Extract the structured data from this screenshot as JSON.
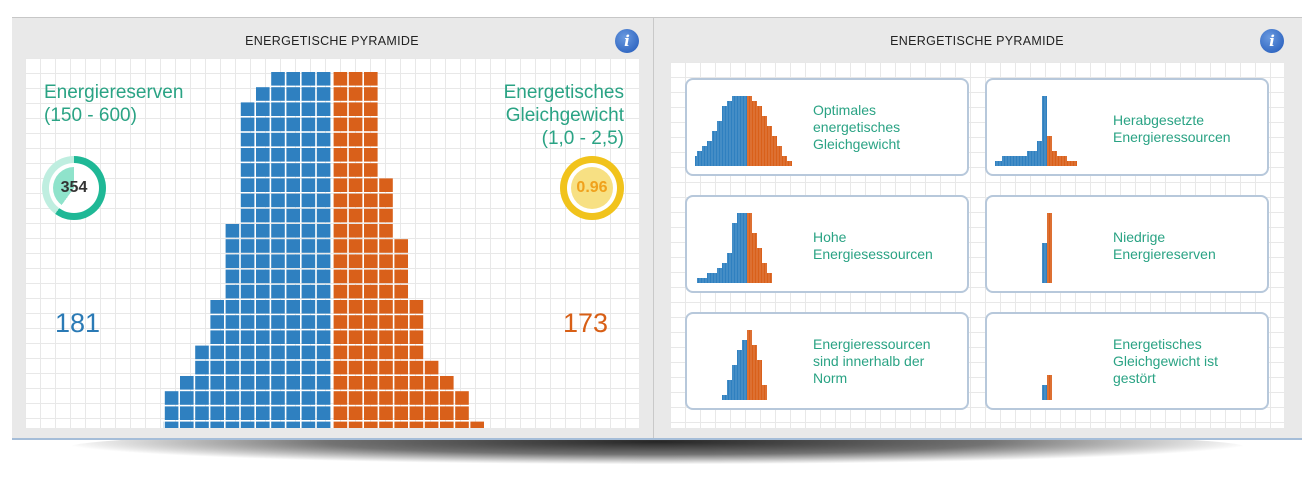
{
  "panels": [
    {
      "title": "ENERGETISCHE PYRAMIDE",
      "info_icon": "info-icon"
    },
    {
      "title": "ENERGETISCHE PYRAMIDE",
      "info_icon": "info-icon"
    }
  ],
  "left": {
    "reserves_label_1": "Energiereserven",
    "reserves_label_2": "(150 - 600)",
    "reserves_value": "354",
    "balance_label_1": "Energetisches",
    "balance_label_2": "Gleichgewicht",
    "balance_label_3": "(1,0 - 2,5)",
    "balance_value": "0.96",
    "left_count": "181",
    "right_count": "173"
  },
  "colors": {
    "blue": "#2f80c0",
    "orange": "#d9601a",
    "teal": "#2aa384",
    "gold": "#f1c31c"
  },
  "chart_data": {
    "type": "bar",
    "orientation": "pyramid",
    "row_labels": [],
    "left_series": {
      "name": "",
      "values": [
        4,
        5,
        6,
        6,
        6,
        6,
        6,
        6,
        6,
        6,
        7,
        7,
        7,
        7,
        7,
        8,
        8,
        8,
        9,
        9,
        10,
        11,
        11,
        12,
        12,
        13,
        13,
        14
      ]
    },
    "right_series": {
      "name": "",
      "values": [
        3,
        3,
        3,
        3,
        3,
        3,
        3,
        4,
        4,
        4,
        4,
        5,
        5,
        5,
        5,
        6,
        6,
        6,
        6,
        7,
        8,
        9,
        9,
        10,
        11,
        11,
        12,
        13
      ]
    }
  },
  "cards": [
    {
      "label": "Optimales energetisches Gleichgewicht",
      "lines": [
        "Optimales",
        "energetisches",
        "Gleichgewicht"
      ],
      "left": [
        3,
        4,
        5,
        5,
        5,
        6,
        6,
        7,
        7,
        8,
        9,
        10,
        11,
        13
      ],
      "right": [
        1,
        2,
        3,
        3,
        4,
        4,
        5,
        5,
        6,
        6,
        7,
        7,
        8,
        9
      ]
    },
    {
      "label": "Herabgesetzte Energieressourcen",
      "lines": [
        "Herabgesetzte",
        "Energieressourcen"
      ],
      "left": [
        1,
        1,
        1,
        1,
        1,
        1,
        1,
        1,
        1,
        2,
        2,
        4,
        9,
        13
      ],
      "right": [
        0,
        0,
        0,
        0,
        0,
        0,
        0,
        0,
        1,
        1,
        1,
        2,
        4,
        6
      ]
    },
    {
      "label": "Hohe Energiesessourcen",
      "lines": [
        "Hohe",
        "Energiesessourcen"
      ],
      "left": [
        2,
        2,
        3,
        3,
        3,
        3,
        3,
        3,
        4,
        4,
        5,
        6,
        8,
        10
      ],
      "right": [
        1,
        1,
        1,
        1,
        2,
        2,
        2,
        3,
        3,
        3,
        4,
        4,
        5,
        5
      ]
    },
    {
      "label": "Niedrige Energiereserven",
      "lines": [
        "Niedrige",
        "Energiereserven"
      ],
      "left": [
        0,
        0,
        0,
        0,
        0,
        0,
        1,
        1,
        1,
        1,
        1,
        1,
        1,
        1
      ],
      "right": [
        1,
        1,
        1,
        1,
        1,
        1,
        1,
        1,
        1,
        1,
        1,
        1,
        1,
        1
      ]
    },
    {
      "label": "Energieressourcen sind innerhalb der Norm",
      "lines": [
        "Energieressourcen",
        "sind innerhalb der",
        "Norm"
      ],
      "left": [
        0,
        0,
        1,
        1,
        2,
        2,
        2,
        3,
        3,
        3,
        4,
        4,
        4,
        5
      ],
      "right": [
        1,
        1,
        1,
        2,
        2,
        2,
        3,
        3,
        3,
        3,
        3,
        4,
        4,
        4
      ]
    },
    {
      "label": "Energetisches Gleichgewicht ist gestört",
      "lines": [
        "Energetisches",
        "Gleichgewicht ist",
        "gestört"
      ],
      "left": [
        0,
        0,
        0,
        0,
        0,
        0,
        0,
        0,
        0,
        0,
        0,
        1,
        1,
        1
      ],
      "right": [
        0,
        0,
        0,
        0,
        0,
        0,
        0,
        0,
        0,
        1,
        1,
        1,
        1,
        1
      ]
    }
  ]
}
